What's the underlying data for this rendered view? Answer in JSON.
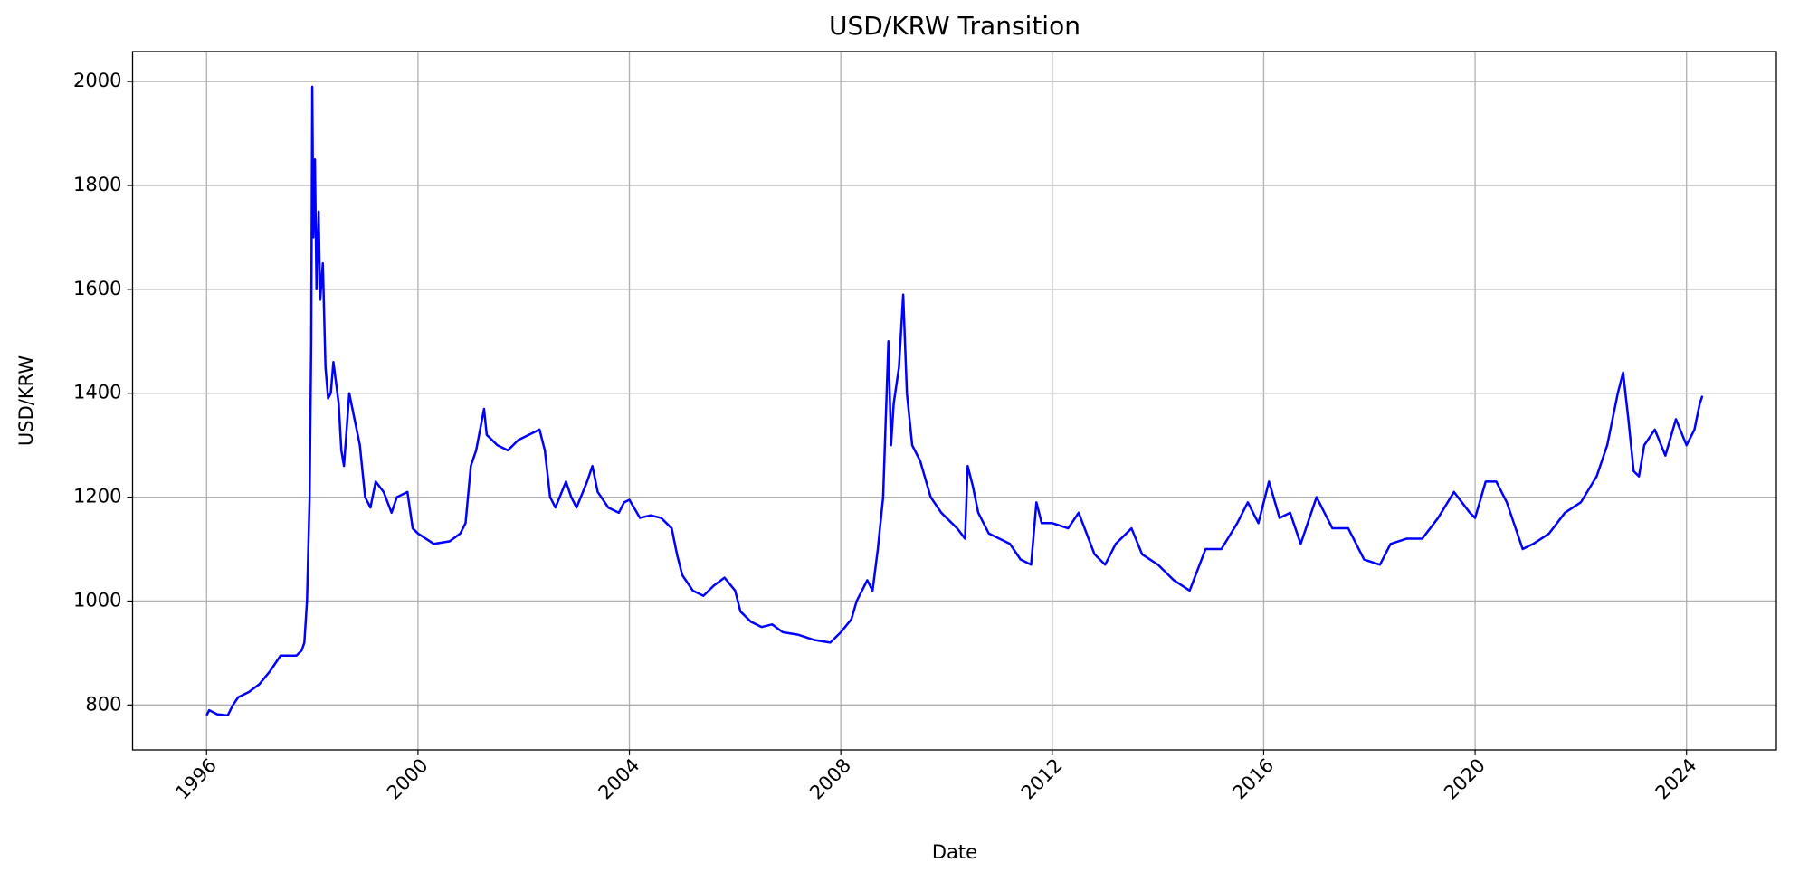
{
  "chart_data": {
    "type": "line",
    "title": "USD/KRW Transition",
    "xlabel": "Date",
    "ylabel": "USD/KRW",
    "color": "#0000ff",
    "grid": true,
    "xlim": [
      1994.6,
      2025.7
    ],
    "xticks": [
      1996,
      2000,
      2004,
      2008,
      2012,
      2016,
      2020,
      2024
    ],
    "ylim": [
      713.5,
      2057.7
    ],
    "yticks": [
      800,
      1000,
      1200,
      1400,
      1600,
      1800,
      2000
    ],
    "x": [
      1996.0,
      1996.05,
      1996.2,
      1996.4,
      1996.5,
      1996.6,
      1996.8,
      1997.0,
      1997.2,
      1997.4,
      1997.5,
      1997.7,
      1997.8,
      1997.85,
      1997.9,
      1997.95,
      1997.98,
      1998.0,
      1998.02,
      1998.05,
      1998.08,
      1998.12,
      1998.15,
      1998.2,
      1998.25,
      1998.3,
      1998.35,
      1998.4,
      1998.5,
      1998.55,
      1998.6,
      1998.7,
      1998.8,
      1998.9,
      1999.0,
      1999.1,
      1999.2,
      1999.35,
      1999.5,
      1999.6,
      1999.8,
      1999.9,
      2000.0,
      2000.3,
      2000.6,
      2000.8,
      2000.9,
      2001.0,
      2001.1,
      2001.25,
      2001.3,
      2001.5,
      2001.7,
      2001.9,
      2002.1,
      2002.3,
      2002.4,
      2002.5,
      2002.6,
      2002.8,
      2002.9,
      2003.0,
      2003.2,
      2003.3,
      2003.4,
      2003.6,
      2003.8,
      2003.9,
      2004.0,
      2004.2,
      2004.4,
      2004.6,
      2004.8,
      2004.9,
      2005.0,
      2005.2,
      2005.4,
      2005.6,
      2005.8,
      2006.0,
      2006.1,
      2006.3,
      2006.5,
      2006.7,
      2006.9,
      2007.2,
      2007.5,
      2007.8,
      2007.9,
      2008.0,
      2008.2,
      2008.3,
      2008.5,
      2008.6,
      2008.7,
      2008.8,
      2008.85,
      2008.9,
      2008.95,
      2009.0,
      2009.1,
      2009.18,
      2009.25,
      2009.35,
      2009.5,
      2009.7,
      2009.9,
      2010.2,
      2010.35,
      2010.4,
      2010.5,
      2010.6,
      2010.8,
      2011.0,
      2011.2,
      2011.4,
      2011.6,
      2011.7,
      2011.8,
      2012.0,
      2012.3,
      2012.5,
      2012.8,
      2013.0,
      2013.2,
      2013.5,
      2013.7,
      2014.0,
      2014.3,
      2014.6,
      2014.9,
      2015.2,
      2015.5,
      2015.7,
      2015.9,
      2016.1,
      2016.3,
      2016.5,
      2016.7,
      2016.9,
      2017.0,
      2017.3,
      2017.6,
      2017.9,
      2018.2,
      2018.4,
      2018.7,
      2019.0,
      2019.3,
      2019.6,
      2019.9,
      2020.0,
      2020.2,
      2020.4,
      2020.6,
      2020.9,
      2021.1,
      2021.4,
      2021.7,
      2022.0,
      2022.3,
      2022.5,
      2022.7,
      2022.8,
      2022.9,
      2023.0,
      2023.1,
      2023.2,
      2023.4,
      2023.6,
      2023.8,
      2024.0,
      2024.15,
      2024.25,
      2024.3
    ],
    "values": [
      780,
      790,
      782,
      780,
      800,
      815,
      825,
      840,
      865,
      895,
      895,
      895,
      905,
      920,
      1000,
      1200,
      1500,
      1990,
      1700,
      1850,
      1600,
      1750,
      1580,
      1650,
      1450,
      1390,
      1400,
      1460,
      1380,
      1290,
      1260,
      1400,
      1350,
      1300,
      1200,
      1180,
      1230,
      1210,
      1170,
      1200,
      1210,
      1140,
      1130,
      1110,
      1115,
      1130,
      1150,
      1260,
      1290,
      1370,
      1320,
      1300,
      1290,
      1310,
      1320,
      1330,
      1290,
      1200,
      1180,
      1230,
      1200,
      1180,
      1230,
      1260,
      1210,
      1180,
      1170,
      1190,
      1195,
      1160,
      1165,
      1160,
      1140,
      1090,
      1050,
      1020,
      1010,
      1030,
      1045,
      1020,
      980,
      960,
      950,
      955,
      940,
      935,
      925,
      920,
      930,
      940,
      965,
      1000,
      1040,
      1020,
      1100,
      1200,
      1350,
      1500,
      1300,
      1380,
      1450,
      1590,
      1400,
      1300,
      1270,
      1200,
      1170,
      1140,
      1120,
      1260,
      1220,
      1170,
      1130,
      1120,
      1110,
      1080,
      1070,
      1190,
      1150,
      1150,
      1140,
      1170,
      1090,
      1070,
      1110,
      1140,
      1090,
      1070,
      1040,
      1020,
      1100,
      1100,
      1150,
      1190,
      1150,
      1230,
      1160,
      1170,
      1110,
      1170,
      1200,
      1140,
      1140,
      1080,
      1070,
      1110,
      1120,
      1120,
      1160,
      1210,
      1170,
      1160,
      1230,
      1230,
      1190,
      1100,
      1110,
      1130,
      1170,
      1190,
      1240,
      1300,
      1400,
      1440,
      1350,
      1250,
      1240,
      1300,
      1330,
      1280,
      1350,
      1300,
      1330,
      1380,
      1395
    ]
  }
}
